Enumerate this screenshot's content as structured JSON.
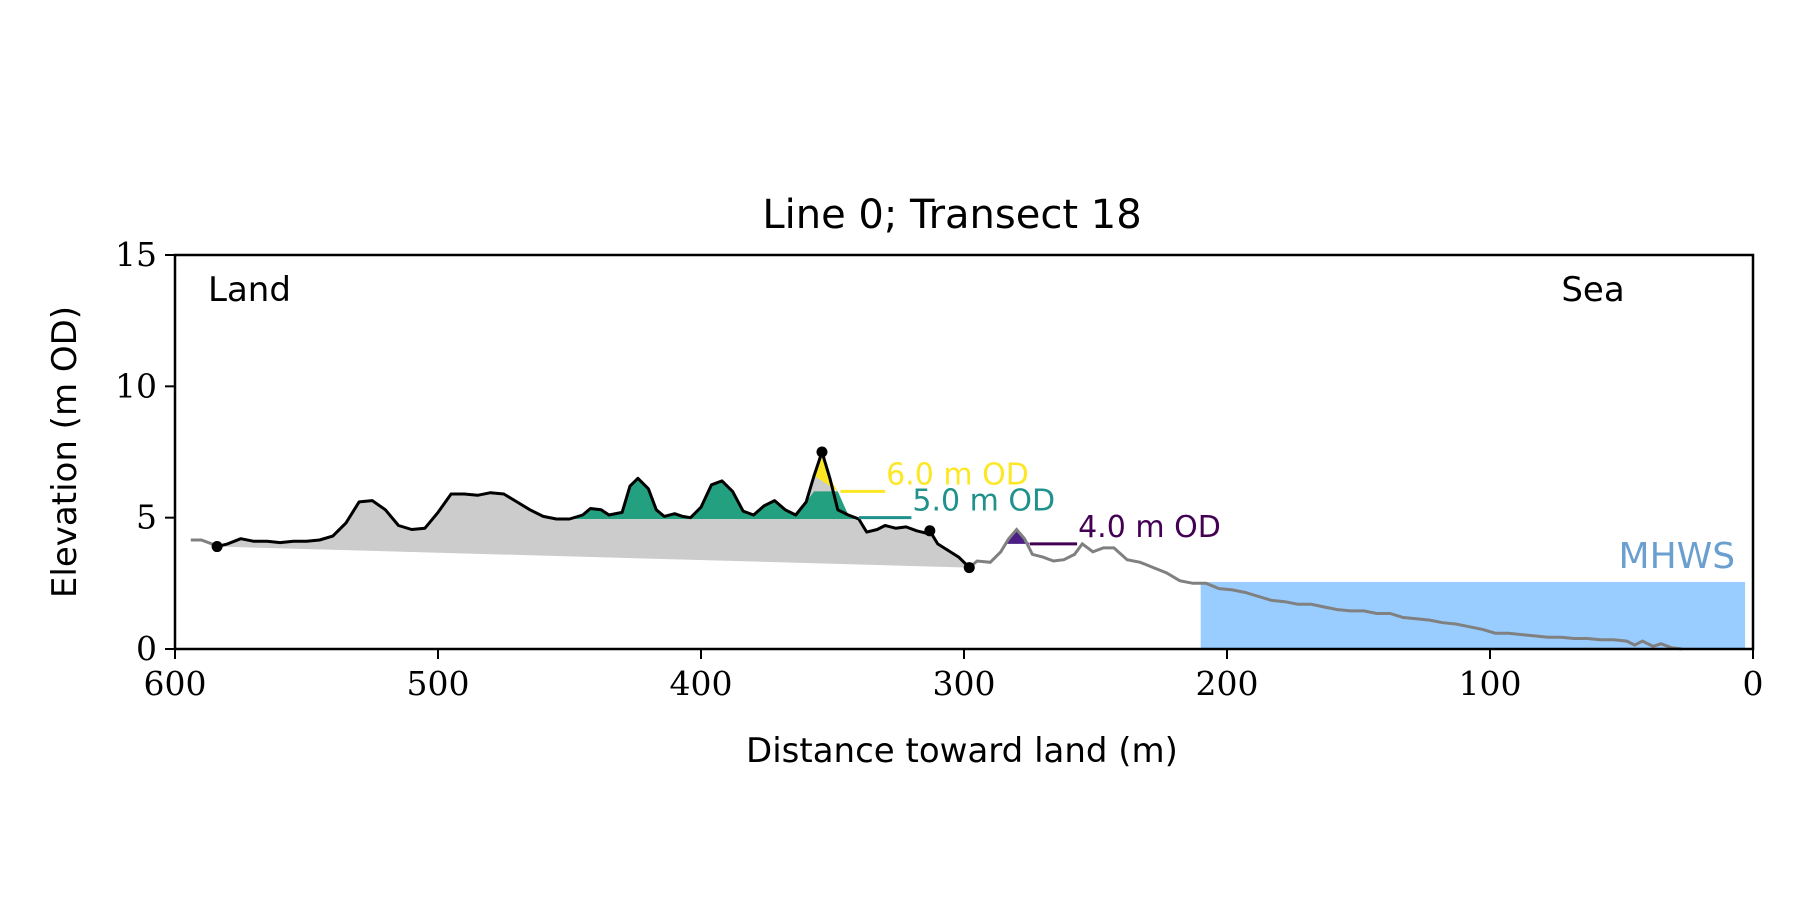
{
  "chart_data": {
    "type": "line",
    "title": "Line 0; Transect 18",
    "xlabel": "Distance toward land (m)",
    "ylabel": "Elevation (m OD)",
    "xlim": [
      600,
      0
    ],
    "ylim": [
      0,
      15
    ],
    "x_ticks": [
      600,
      500,
      400,
      300,
      200,
      100,
      0
    ],
    "y_ticks": [
      0,
      5,
      10,
      15
    ],
    "grid": false,
    "annotations": {
      "land": "Land",
      "sea": "Sea",
      "mhws": "MHWS"
    },
    "colors": {
      "profile": "#000000",
      "seaward_profile": "#808080",
      "dune_fill": "#cccccc",
      "mhws_fill": "#99ccff",
      "mhws_label": "#6a9fd0",
      "level_6": "#fde725",
      "level_5": "#21918c",
      "level_4": "#440154",
      "level_5_fill": "#22a07f",
      "level_4_fill": "#4b1f86"
    },
    "mhws": {
      "elevation": 2.55,
      "x_from": 210,
      "x_to": 3,
      "label": "MHWS"
    },
    "levels": [
      {
        "label": "6.0 m OD",
        "elevation": 6.0,
        "line_from": 347,
        "line_to": 330
      },
      {
        "label": "5.0 m OD",
        "elevation": 5.0,
        "line_from": 340,
        "line_to": 320
      },
      {
        "label": "4.0 m OD",
        "elevation": 4.0,
        "line_from": 275,
        "line_to": 257
      }
    ],
    "markers": [
      {
        "x": 584,
        "y": 3.9
      },
      {
        "x": 354,
        "y": 7.5
      },
      {
        "x": 313,
        "y": 4.5
      },
      {
        "x": 298,
        "y": 3.1
      }
    ],
    "series": [
      {
        "x": [
          584,
          580,
          575,
          570,
          565,
          560,
          555,
          550,
          545,
          540,
          535,
          530,
          525,
          520,
          515,
          510,
          505,
          500,
          495,
          490,
          485,
          480,
          475,
          470,
          465,
          460,
          455,
          450,
          445,
          442,
          438,
          435,
          430,
          427,
          424,
          420,
          417,
          414,
          410,
          407,
          404,
          400,
          396,
          392,
          388,
          384,
          380,
          376,
          372,
          368,
          364,
          360,
          357,
          354,
          351,
          348,
          344,
          340,
          337,
          333,
          330,
          326,
          322,
          318,
          314,
          313,
          310,
          306,
          302,
          298
        ],
        "y": [
          3.9,
          4.0,
          4.2,
          4.1,
          4.1,
          4.05,
          4.1,
          4.1,
          4.15,
          4.3,
          4.8,
          5.6,
          5.65,
          5.3,
          4.7,
          4.55,
          4.6,
          5.2,
          5.9,
          5.9,
          5.85,
          5.95,
          5.9,
          5.6,
          5.3,
          5.05,
          4.95,
          4.95,
          5.1,
          5.35,
          5.3,
          5.1,
          5.2,
          6.2,
          6.5,
          6.1,
          5.3,
          5.05,
          5.15,
          5.05,
          5.0,
          5.4,
          6.25,
          6.4,
          6.0,
          5.25,
          5.1,
          5.45,
          5.65,
          5.3,
          5.1,
          5.6,
          6.6,
          7.5,
          6.5,
          5.3,
          5.1,
          4.95,
          4.45,
          4.55,
          4.7,
          4.6,
          4.65,
          4.5,
          4.4,
          4.5,
          4.0,
          3.75,
          3.5,
          3.1
        ]
      },
      {
        "x": [
          298,
          295,
          290,
          286,
          283,
          280,
          277,
          274,
          270,
          266,
          262,
          258,
          255,
          251,
          247,
          243,
          238,
          233,
          228,
          223,
          218,
          213,
          208,
          203,
          198,
          193,
          188,
          183,
          178,
          173,
          168,
          163,
          158,
          153,
          148,
          143,
          138,
          133,
          128,
          123,
          118,
          113,
          108,
          103,
          98,
          93,
          88,
          83,
          78,
          73,
          68,
          63,
          58,
          53,
          48,
          45,
          42,
          38,
          35,
          31,
          27
        ],
        "y": [
          3.1,
          3.35,
          3.3,
          3.7,
          4.2,
          4.55,
          4.2,
          3.6,
          3.5,
          3.35,
          3.4,
          3.6,
          4.0,
          3.7,
          3.85,
          3.85,
          3.4,
          3.3,
          3.1,
          2.9,
          2.6,
          2.5,
          2.5,
          2.3,
          2.25,
          2.15,
          2.0,
          1.85,
          1.8,
          1.7,
          1.7,
          1.6,
          1.5,
          1.45,
          1.45,
          1.35,
          1.35,
          1.2,
          1.15,
          1.1,
          1.0,
          0.95,
          0.85,
          0.75,
          0.6,
          0.6,
          0.55,
          0.5,
          0.45,
          0.45,
          0.4,
          0.4,
          0.35,
          0.35,
          0.3,
          0.15,
          0.3,
          0.1,
          0.2,
          0.05,
          0.0
        ]
      },
      {
        "x": [
          594,
          590,
          586,
          584
        ],
        "y": [
          4.15,
          4.15,
          4.0,
          3.9
        ]
      }
    ],
    "dune_base": [
      {
        "x": 584,
        "y": 3.9
      },
      {
        "x": 298,
        "y": 3.1
      }
    ],
    "level_fills": [
      {
        "level": 6.0,
        "x": [
          357,
          354,
          351,
          348
        ],
        "y": [
          6.6,
          7.5,
          6.5,
          6.0
        ]
      },
      {
        "level": 5.0,
        "x": [
          450,
          445,
          442,
          438,
          435,
          430,
          427,
          424,
          420,
          417,
          414,
          410,
          407,
          404,
          400,
          396,
          392,
          388,
          384,
          380,
          376,
          372,
          368,
          364,
          360,
          357,
          354,
          351,
          348,
          344,
          340
        ],
        "y": [
          4.95,
          5.1,
          5.35,
          5.3,
          5.1,
          5.2,
          6.2,
          6.5,
          6.1,
          5.3,
          5.05,
          5.15,
          5.05,
          5.0,
          5.4,
          6.25,
          6.4,
          6.0,
          5.25,
          5.1,
          5.45,
          5.65,
          5.3,
          5.1,
          5.6,
          6.0,
          6.0,
          6.0,
          6.0,
          5.1,
          4.95
        ]
      },
      {
        "level": 4.0,
        "x": [
          284,
          280,
          277,
          275
        ],
        "y": [
          4.0,
          4.55,
          4.2,
          4.0
        ]
      }
    ]
  }
}
